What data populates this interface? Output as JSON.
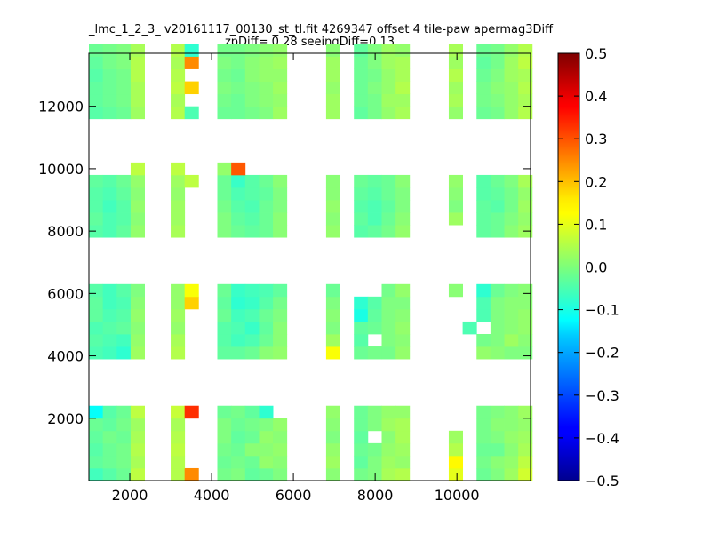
{
  "chart_data": {
    "type": "heatmap",
    "title_line1": "_lmc_1_2_3_ v20161117_00130_st_tl.fit 4269347 offset 4 tile-paw apermag3Diff",
    "title_line2": "zpDiff= 0.28 seeingDiff=0.13",
    "xlabel": "",
    "ylabel": "",
    "xlim": [
      1000,
      11800
    ],
    "ylim": [
      0,
      13700
    ],
    "x_ticks": [
      2000,
      4000,
      6000,
      8000,
      10000
    ],
    "y_ticks": [
      2000,
      4000,
      6000,
      8000,
      10000,
      12000
    ],
    "colorbar": {
      "label": "",
      "range": [
        -0.5,
        0.5
      ],
      "ticks": [
        "0.5",
        "0.4",
        "0.3",
        "0.2",
        "0.1",
        "0.0",
        "−0.1",
        "−0.2",
        "−0.3",
        "−0.4",
        "−0.5"
      ]
    },
    "cell_size": [
      340,
      400
    ],
    "bands": [
      {
        "y_start": 0,
        "rows": 6,
        "row_offset": 0
      },
      {
        "y_start": 3900,
        "rows": 6,
        "row_offset": 6
      },
      {
        "y_start": 7800,
        "rows": 6,
        "row_offset": 12
      },
      {
        "y_start": 11600,
        "rows": 6,
        "row_offset": 18
      }
    ],
    "detector_columns": [
      {
        "x_start": 1000,
        "cols": 4
      },
      {
        "x_start": 3000,
        "cols": 2
      },
      {
        "x_start": 3800,
        "cols": 6
      },
      {
        "x_start": 6800,
        "cols": 6
      },
      {
        "x_start": 9800,
        "cols": 6
      }
    ],
    "grid_rows": [
      [
        -0.06,
        -0.04,
        -0.02,
        0.06,
        0.05,
        0.24,
        null,
        -0.01,
        0.0,
        -0.03,
        -0.02,
        0.0,
        0.01,
        null,
        -0.01,
        0.0,
        0.04,
        0.05,
        0.1,
        null,
        -0.02,
        0.0,
        0.03,
        0.08,
        0.04,
        0.03
      ],
      [
        -0.03,
        -0.02,
        -0.01,
        0.04,
        0.05,
        null,
        null,
        -0.02,
        -0.01,
        -0.02,
        0.02,
        0.01,
        0.03,
        null,
        -0.03,
        0.0,
        0.03,
        0.02,
        0.13,
        null,
        -0.01,
        0.01,
        0.02,
        0.06,
        0.09,
        null
      ],
      [
        -0.04,
        -0.02,
        -0.01,
        0.05,
        0.06,
        null,
        null,
        -0.01,
        -0.02,
        0.01,
        0.01,
        0.02,
        0.02,
        null,
        -0.02,
        -0.01,
        0.02,
        0.03,
        0.05,
        null,
        -0.02,
        -0.02,
        0.01,
        0.04,
        0.05,
        0.04
      ],
      [
        -0.03,
        -0.01,
        -0.02,
        0.04,
        0.05,
        null,
        null,
        0.0,
        -0.03,
        -0.02,
        0.02,
        0.01,
        0.0,
        null,
        -0.03,
        null,
        0.01,
        0.04,
        0.03,
        null,
        -0.01,
        0.0,
        0.02,
        0.03,
        0.06,
        0.02
      ],
      [
        -0.02,
        -0.03,
        -0.01,
        0.03,
        0.04,
        null,
        null,
        0.0,
        -0.02,
        -0.01,
        0.0,
        0.02,
        0.01,
        null,
        -0.02,
        0.0,
        0.03,
        0.04,
        null,
        null,
        -0.01,
        0.01,
        0.01,
        0.02,
        0.02,
        0.0
      ],
      [
        -0.12,
        -0.04,
        -0.02,
        0.06,
        0.07,
        0.33,
        null,
        -0.02,
        -0.01,
        -0.03,
        -0.08,
        null,
        0.02,
        null,
        -0.02,
        0.0,
        0.02,
        0.02,
        null,
        null,
        -0.01,
        0.0,
        0.01,
        0.03,
        0.06,
        0.04
      ],
      [
        -0.05,
        -0.06,
        -0.08,
        0.03,
        0.05,
        null,
        null,
        -0.03,
        -0.03,
        -0.02,
        0.01,
        0.02,
        0.12,
        null,
        -0.02,
        -0.01,
        -0.01,
        0.02,
        null,
        null,
        0.02,
        0.01,
        0.0,
        0.0,
        0.0,
        null
      ],
      [
        -0.04,
        -0.05,
        -0.06,
        0.02,
        0.04,
        null,
        null,
        -0.04,
        -0.06,
        -0.05,
        -0.02,
        0.01,
        0.03,
        null,
        -0.04,
        null,
        0.0,
        0.01,
        null,
        null,
        -0.01,
        0.0,
        0.03,
        0.01,
        0.02,
        null
      ],
      [
        -0.05,
        -0.04,
        -0.03,
        0.01,
        0.02,
        null,
        null,
        -0.04,
        -0.05,
        -0.07,
        -0.03,
        0.01,
        0.0,
        null,
        -0.03,
        -0.02,
        0.0,
        0.02,
        null,
        -0.05,
        null,
        0.0,
        0.01,
        0.02,
        0.01,
        null
      ],
      [
        -0.03,
        -0.05,
        -0.04,
        0.02,
        0.03,
        null,
        null,
        -0.02,
        -0.06,
        -0.05,
        -0.02,
        0.0,
        0.01,
        null,
        -0.1,
        -0.03,
        0.0,
        0.01,
        null,
        null,
        -0.05,
        0.0,
        0.01,
        0.02,
        0.03,
        null
      ],
      [
        -0.03,
        -0.06,
        -0.05,
        0.01,
        0.02,
        0.17,
        null,
        -0.03,
        -0.08,
        -0.07,
        -0.04,
        -0.01,
        0.0,
        null,
        -0.08,
        -0.04,
        0.0,
        0.0,
        null,
        null,
        -0.05,
        0.0,
        0.01,
        0.01,
        0.02,
        null
      ],
      [
        -0.04,
        -0.06,
        -0.04,
        0.0,
        0.02,
        0.12,
        null,
        -0.02,
        -0.07,
        -0.06,
        -0.05,
        -0.03,
        -0.02,
        null,
        null,
        null,
        -0.01,
        0.02,
        0.01,
        null,
        -0.08,
        -0.02,
        0.0,
        0.01,
        0.02,
        null
      ],
      [
        -0.04,
        -0.05,
        -0.03,
        0.02,
        0.04,
        null,
        null,
        0.0,
        -0.02,
        -0.03,
        -0.02,
        0.01,
        0.02,
        null,
        -0.04,
        -0.03,
        -0.01,
        0.02,
        null,
        null,
        -0.03,
        -0.02,
        0.01,
        0.03,
        0.06,
        0.05
      ],
      [
        -0.03,
        -0.05,
        -0.04,
        0.01,
        0.03,
        null,
        null,
        0.0,
        -0.03,
        -0.04,
        -0.02,
        0.01,
        0.01,
        null,
        -0.03,
        -0.05,
        -0.02,
        0.01,
        0.03,
        null,
        -0.03,
        -0.02,
        0.0,
        0.02,
        0.04,
        0.03
      ],
      [
        -0.04,
        -0.06,
        -0.04,
        0.02,
        0.03,
        null,
        null,
        -0.01,
        -0.04,
        -0.05,
        -0.02,
        0.0,
        0.02,
        null,
        -0.04,
        -0.05,
        -0.03,
        0.0,
        0.0,
        null,
        -0.03,
        -0.04,
        -0.01,
        0.03,
        0.04,
        0.03
      ],
      [
        -0.04,
        -0.05,
        -0.03,
        0.01,
        0.02,
        null,
        null,
        -0.02,
        -0.05,
        -0.04,
        -0.03,
        0.0,
        0.01,
        null,
        -0.03,
        -0.04,
        -0.02,
        0.0,
        0.01,
        null,
        -0.04,
        -0.03,
        -0.01,
        0.02,
        0.05,
        0.02
      ],
      [
        -0.03,
        -0.04,
        -0.02,
        0.02,
        0.03,
        0.06,
        null,
        -0.02,
        -0.07,
        -0.04,
        -0.02,
        0.01,
        0.01,
        null,
        -0.02,
        -0.03,
        -0.02,
        0.01,
        0.02,
        null,
        -0.04,
        -0.02,
        0.0,
        0.04,
        0.02,
        0.03
      ],
      [
        null,
        null,
        null,
        0.06,
        0.06,
        null,
        null,
        0.02,
        0.29,
        null,
        null,
        null,
        null,
        null,
        null,
        null,
        null,
        null,
        null,
        null,
        null,
        null,
        null,
        null,
        null,
        null
      ],
      [
        -0.04,
        -0.03,
        -0.02,
        0.03,
        0.05,
        -0.05,
        null,
        -0.02,
        -0.02,
        -0.01,
        0.0,
        0.03,
        0.03,
        null,
        -0.03,
        -0.01,
        0.02,
        0.04,
        0.02,
        null,
        -0.02,
        -0.01,
        0.02,
        0.05,
        0.04,
        0.04
      ],
      [
        -0.03,
        -0.02,
        -0.01,
        0.04,
        0.04,
        null,
        null,
        -0.01,
        -0.02,
        0.0,
        0.01,
        0.02,
        0.03,
        null,
        -0.02,
        -0.01,
        0.03,
        0.03,
        0.04,
        null,
        -0.01,
        0.0,
        0.02,
        0.04,
        0.05,
        0.03
      ],
      [
        -0.03,
        -0.02,
        -0.01,
        0.04,
        0.06,
        0.17,
        null,
        0.0,
        -0.01,
        0.0,
        0.01,
        0.03,
        0.02,
        null,
        -0.02,
        0.0,
        0.02,
        0.05,
        0.03,
        null,
        -0.01,
        0.01,
        0.02,
        0.05,
        0.06,
        0.04
      ],
      [
        -0.04,
        -0.02,
        -0.01,
        0.05,
        0.05,
        null,
        null,
        -0.01,
        -0.02,
        0.01,
        0.02,
        0.02,
        0.03,
        null,
        -0.02,
        -0.01,
        0.02,
        0.04,
        0.05,
        null,
        -0.02,
        0.0,
        0.03,
        0.04,
        0.06,
        0.03
      ],
      [
        -0.03,
        -0.01,
        0.0,
        0.05,
        0.04,
        0.24,
        null,
        0.0,
        -0.01,
        0.01,
        0.02,
        0.03,
        0.03,
        null,
        -0.02,
        0.0,
        0.03,
        0.04,
        0.03,
        null,
        -0.03,
        -0.01,
        0.03,
        0.06,
        0.05,
        0.04
      ],
      [
        -0.02,
        -0.01,
        0.0,
        0.04,
        0.05,
        -0.08,
        null,
        -0.01,
        -0.01,
        0.0,
        0.01,
        0.02,
        0.01,
        null,
        -0.03,
        0.0,
        0.03,
        0.02,
        0.04,
        null,
        -0.02,
        -0.01,
        0.02,
        0.05,
        0.04,
        0.03
      ]
    ]
  }
}
